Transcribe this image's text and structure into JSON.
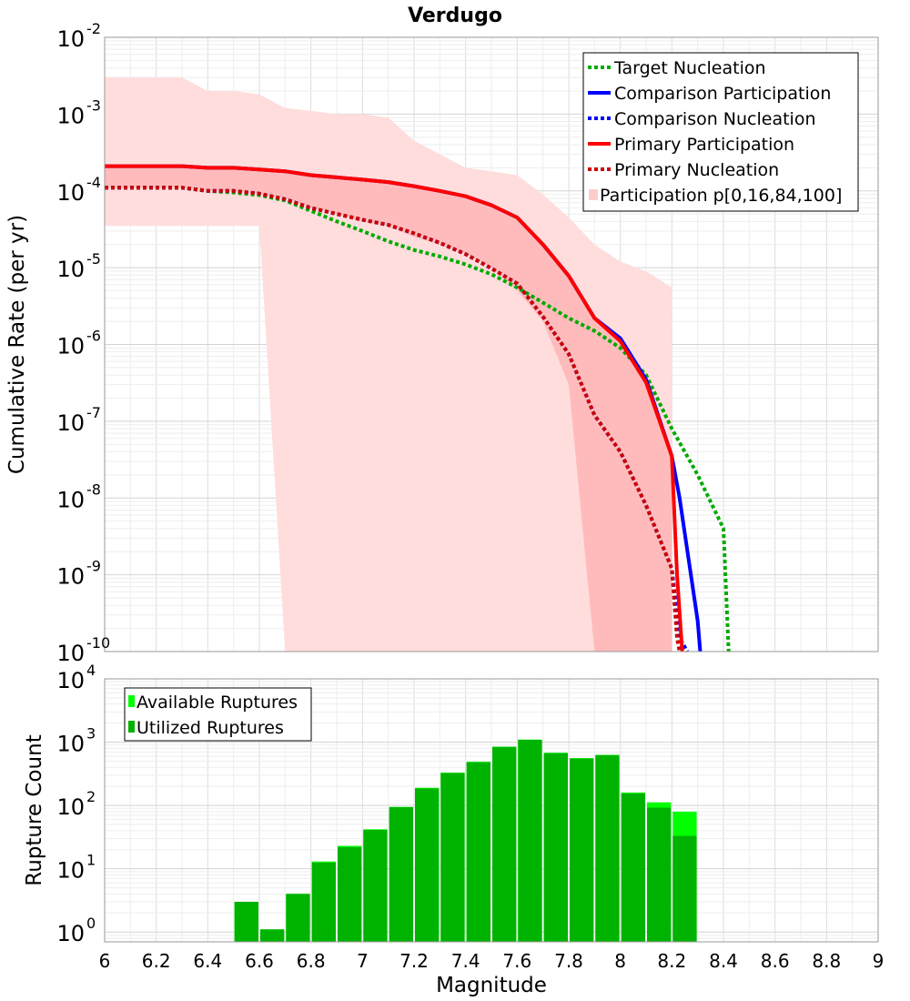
{
  "chart_data": [
    {
      "type": "line",
      "title": "Verdugo",
      "xlabel": "",
      "ylabel": "Cumulative Rate (per yr)",
      "xlim": [
        6,
        9
      ],
      "ylim": [
        1e-10,
        0.01
      ],
      "yscale": "log",
      "y_tick_labels": [
        {
          "base": "10",
          "exp": "-10",
          "value": 1e-10
        },
        {
          "base": "10",
          "exp": "-9",
          "value": 1e-09
        },
        {
          "base": "10",
          "exp": "-8",
          "value": 1e-08
        },
        {
          "base": "10",
          "exp": "-7",
          "value": 1e-07
        },
        {
          "base": "10",
          "exp": "-6",
          "value": 1e-06
        },
        {
          "base": "10",
          "exp": "-5",
          "value": 1e-05
        },
        {
          "base": "10",
          "exp": "-4",
          "value": 0.0001
        },
        {
          "base": "10",
          "exp": "-3",
          "value": 0.001
        },
        {
          "base": "10",
          "exp": "-2",
          "value": 0.01
        }
      ],
      "legend": [
        {
          "label": "Target Nucleation",
          "color": "#00aa00",
          "style": "dotted"
        },
        {
          "label": "Comparison Participation",
          "color": "#0000ff",
          "style": "solid"
        },
        {
          "label": "Comparison Nucleation",
          "color": "#0000ff",
          "style": "dotted"
        },
        {
          "label": "Primary Participation",
          "color": "#ff0000",
          "style": "solid"
        },
        {
          "label": "Primary Nucleation",
          "color": "#cc0000",
          "style": "dotted"
        },
        {
          "label": "Participation p[0,16,84,100]",
          "color": "#ffcccc",
          "style": "band"
        }
      ],
      "bands": [
        {
          "name": "Participation p[0,100]",
          "color": "#ffdddd",
          "x": [
            6.0,
            6.3,
            6.4,
            6.5,
            6.6,
            6.7,
            6.8,
            6.9,
            7.0,
            7.1,
            7.2,
            7.3,
            7.4,
            7.5,
            7.6,
            7.7,
            7.8,
            7.9,
            8.0,
            8.1,
            8.2
          ],
          "upper": [
            0.003,
            0.003,
            0.002,
            0.002,
            0.0018,
            0.0012,
            0.0011,
            0.001,
            0.001,
            0.0009,
            0.00045,
            0.0003,
            0.0002,
            0.00018,
            0.00016,
            9e-05,
            4.5e-05,
            2e-05,
            1.2e-05,
            9e-06,
            5.5e-06
          ],
          "lower": [
            3.5e-05,
            3.5e-05,
            3.5e-05,
            3.5e-05,
            3.5e-05,
            1e-10,
            1e-10,
            1e-10,
            1e-10,
            1e-10,
            1e-10,
            1e-10,
            1e-10,
            1e-10,
            1e-10,
            1e-10,
            1e-10,
            1e-10,
            1e-10,
            1e-10,
            1e-10
          ]
        },
        {
          "name": "Participation p[16,84]",
          "color": "#ffbbbb",
          "x": [
            6.0,
            6.3,
            6.4,
            6.5,
            6.6,
            6.7,
            6.8,
            6.9,
            7.0,
            7.1,
            7.2,
            7.3,
            7.4,
            7.5,
            7.6,
            7.7,
            7.8,
            7.9,
            8.0,
            8.1,
            8.2
          ],
          "upper": [
            0.00021,
            0.00021,
            0.0002,
            0.0002,
            0.00019,
            0.00018,
            0.00016,
            0.00015,
            0.00014,
            0.00013,
            0.00012,
            0.0001,
            8.5e-05,
            7e-05,
            4.5e-05,
            2e-05,
            7.5e-06,
            2.1e-06,
            1e-06,
            3e-07,
            3e-08
          ],
          "lower": [
            0.00011,
            0.00011,
            0.0001,
            0.0001,
            9e-05,
            8e-05,
            6e-05,
            5e-05,
            4e-05,
            3.5e-05,
            2.5e-05,
            2e-05,
            1.5e-05,
            1e-05,
            5e-06,
            2e-06,
            3e-07,
            1e-10,
            1e-10,
            1e-10,
            1e-10
          ]
        }
      ],
      "series": [
        {
          "name": "Target Nucleation",
          "color": "#00aa00",
          "style": "dotted",
          "x": [
            6.0,
            6.3,
            6.4,
            6.5,
            6.6,
            6.7,
            6.8,
            6.9,
            7.0,
            7.1,
            7.2,
            7.3,
            7.4,
            7.5,
            7.6,
            7.7,
            7.8,
            7.9,
            8.0,
            8.1,
            8.2,
            8.3,
            8.4,
            8.42
          ],
          "y": [
            0.00011,
            0.00011,
            0.0001,
            9.5e-05,
            8.8e-05,
            7.5e-05,
            5.5e-05,
            4e-05,
            3e-05,
            2.2e-05,
            1.7e-05,
            1.4e-05,
            1.1e-05,
            8.2e-06,
            5.5e-06,
            3.5e-06,
            2.2e-06,
            1.5e-06,
            9e-07,
            4e-07,
            8e-08,
            2e-08,
            4e-09,
            1e-10
          ]
        },
        {
          "name": "Comparison Participation",
          "color": "#0000ff",
          "style": "solid",
          "x": [
            6.0,
            6.3,
            6.4,
            6.5,
            6.6,
            6.7,
            6.8,
            6.9,
            7.0,
            7.1,
            7.2,
            7.3,
            7.4,
            7.5,
            7.6,
            7.7,
            7.8,
            7.9,
            8.0,
            8.1,
            8.2,
            8.23,
            8.3,
            8.31
          ],
          "y": [
            0.00021,
            0.00021,
            0.0002,
            0.0002,
            0.00019,
            0.00018,
            0.00016,
            0.00015,
            0.00014,
            0.00013,
            0.000115,
            0.0001,
            8.5e-05,
            6.5e-05,
            4.5e-05,
            2e-05,
            7.8e-06,
            2.2e-06,
            1.2e-06,
            3.5e-07,
            3.5e-08,
            1e-08,
            2.5e-10,
            1e-10
          ]
        },
        {
          "name": "Comparison Nucleation",
          "color": "#0000ff",
          "style": "dotted",
          "x": [
            6.0,
            6.3,
            6.4,
            6.5,
            6.6,
            6.7,
            6.8,
            6.9,
            7.0,
            7.1,
            7.2,
            7.3,
            7.4,
            7.5,
            7.6,
            7.7,
            7.8,
            7.9,
            8.0,
            8.1,
            8.2,
            8.23,
            8.26
          ],
          "y": [
            0.00011,
            0.00011,
            0.0001,
            0.0001,
            9.2e-05,
            7.8e-05,
            6e-05,
            5e-05,
            4.2e-05,
            3.6e-05,
            2.8e-05,
            2.1e-05,
            1.5e-05,
            9.8e-06,
            6.2e-06,
            2.3e-06,
            7.5e-07,
            1.2e-07,
            4e-08,
            8e-09,
            1.2e-09,
            1.5e-10,
            1e-10
          ]
        },
        {
          "name": "Primary Participation",
          "color": "#ff0000",
          "style": "solid",
          "x": [
            6.0,
            6.3,
            6.4,
            6.5,
            6.6,
            6.7,
            6.8,
            6.9,
            7.0,
            7.1,
            7.2,
            7.3,
            7.4,
            7.5,
            7.6,
            7.7,
            7.8,
            7.9,
            8.0,
            8.1,
            8.2,
            8.22,
            8.24
          ],
          "y": [
            0.00021,
            0.00021,
            0.0002,
            0.0002,
            0.00019,
            0.00018,
            0.00016,
            0.00015,
            0.00014,
            0.00013,
            0.000115,
            0.0001,
            8.5e-05,
            6.5e-05,
            4.5e-05,
            2e-05,
            7.8e-06,
            2.2e-06,
            1.1e-06,
            3.2e-07,
            3.5e-08,
            1e-09,
            1e-10
          ]
        },
        {
          "name": "Primary Nucleation",
          "color": "#cc0000",
          "style": "dotted",
          "x": [
            6.0,
            6.3,
            6.4,
            6.5,
            6.6,
            6.7,
            6.8,
            6.9,
            7.0,
            7.1,
            7.2,
            7.3,
            7.4,
            7.5,
            7.6,
            7.7,
            7.8,
            7.9,
            8.0,
            8.1,
            8.2,
            8.22,
            8.23
          ],
          "y": [
            0.00011,
            0.00011,
            0.0001,
            0.0001,
            9.2e-05,
            7.8e-05,
            6e-05,
            5e-05,
            4.2e-05,
            3.6e-05,
            2.8e-05,
            2.1e-05,
            1.5e-05,
            9.8e-06,
            6.2e-06,
            2.3e-06,
            7.5e-07,
            1.2e-07,
            4e-08,
            8e-09,
            1.2e-09,
            1.5e-10,
            1e-10
          ]
        }
      ]
    },
    {
      "type": "bar",
      "title": "",
      "xlabel": "Magnitude",
      "ylabel": "Rupture Count",
      "xlim": [
        6,
        9
      ],
      "ylim": [
        0.7,
        10000
      ],
      "yscale": "log",
      "x_tick_labels": [
        "6",
        "6.2",
        "6.4",
        "6.6",
        "6.8",
        "7",
        "7.2",
        "7.4",
        "7.6",
        "7.8",
        "8",
        "8.2",
        "8.4",
        "8.6",
        "8.8",
        "9"
      ],
      "y_tick_labels": [
        {
          "base": "10",
          "exp": "0",
          "value": 1
        },
        {
          "base": "10",
          "exp": "1",
          "value": 10
        },
        {
          "base": "10",
          "exp": "2",
          "value": 100
        },
        {
          "base": "10",
          "exp": "3",
          "value": 1000
        },
        {
          "base": "10",
          "exp": "4",
          "value": 10000
        }
      ],
      "legend": [
        {
          "label": "Available Ruptures",
          "color": "#00ff00"
        },
        {
          "label": "Utilized Ruptures",
          "color": "#00b300"
        }
      ],
      "x": [
        6.55,
        6.65,
        6.75,
        6.85,
        6.95,
        7.05,
        7.15,
        7.25,
        7.35,
        7.45,
        7.55,
        7.65,
        7.75,
        7.85,
        7.95,
        8.05,
        8.15,
        8.25
      ],
      "series": [
        {
          "name": "Available Ruptures",
          "color": "#00ff00",
          "values": [
            3,
            1.1,
            4,
            13,
            23,
            42,
            95,
            190,
            330,
            490,
            850,
            1100,
            680,
            560,
            630,
            160,
            112,
            80
          ]
        },
        {
          "name": "Utilized Ruptures",
          "color": "#00b300",
          "values": [
            3,
            1.1,
            4,
            12.5,
            22,
            41,
            94,
            185,
            325,
            480,
            840,
            1090,
            670,
            550,
            620,
            155,
            92,
            33
          ]
        }
      ]
    }
  ]
}
